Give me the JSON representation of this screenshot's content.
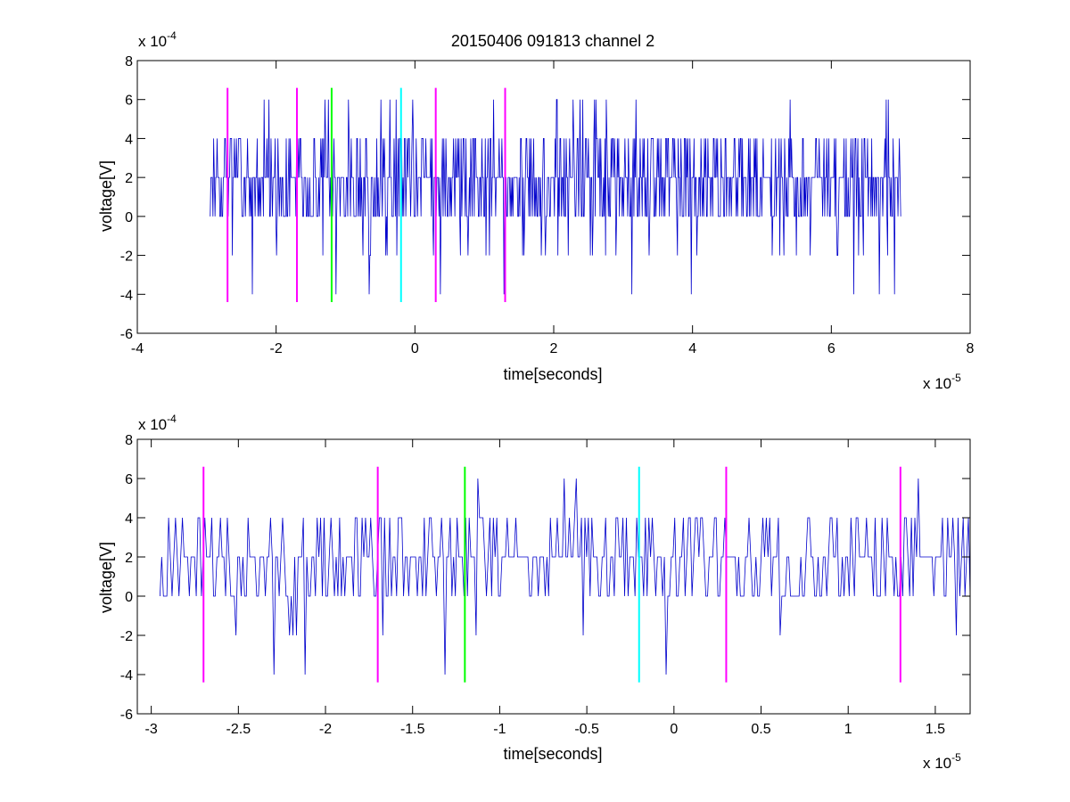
{
  "chart_data": [
    {
      "type": "line",
      "title": "20150406 091813 channel 2",
      "xlabel": "time[seconds]",
      "ylabel": "voltage[V]",
      "x_multiplier": "x 10",
      "x_exponent": "-5",
      "y_multiplier": "x 10",
      "y_exponent": "-4",
      "xlim": [
        -4e-05,
        8e-05
      ],
      "ylim": [
        -0.0006,
        0.0008
      ],
      "x_ticks": [
        -4e-05,
        -2e-05,
        0,
        2e-05,
        4e-05,
        6e-05,
        8e-05
      ],
      "x_tick_labels": [
        "-4",
        "-2",
        "0",
        "2",
        "4",
        "6",
        "8"
      ],
      "y_ticks": [
        -0.0006,
        -0.0004,
        -0.0002,
        0,
        0.0002,
        0.0004,
        0.0006,
        0.0008
      ],
      "y_tick_labels": [
        "-6",
        "-4",
        "-2",
        "0",
        "2",
        "4",
        "6",
        "8"
      ],
      "grid": false,
      "series": [
        {
          "color": "#0000cc",
          "x_start": -2.95e-05,
          "x_end": 7e-05,
          "quantization_step": 0.0002,
          "seed": 11,
          "samples": 1000,
          "values": []
        }
      ],
      "markers": [
        {
          "x": -2.7e-05,
          "color": "#ff00ff",
          "y_range": [
            -0.00044,
            0.00066
          ]
        },
        {
          "x": -1.7e-05,
          "color": "#ff00ff",
          "y_range": [
            -0.00044,
            0.00066
          ]
        },
        {
          "x": -1.2e-05,
          "color": "#00ff00",
          "y_range": [
            -0.00044,
            0.00066
          ]
        },
        {
          "x": -2e-06,
          "color": "#00ffff",
          "y_range": [
            -0.00044,
            0.00066
          ]
        },
        {
          "x": 3e-06,
          "color": "#ff00ff",
          "y_range": [
            -0.00044,
            0.00066
          ]
        },
        {
          "x": 1.3e-05,
          "color": "#ff00ff",
          "y_range": [
            -0.00044,
            0.00066
          ]
        }
      ]
    },
    {
      "type": "line",
      "title": "",
      "xlabel": "time[seconds]",
      "ylabel": "voltage[V]",
      "x_multiplier": "x 10",
      "x_exponent": "-5",
      "y_multiplier": "x 10",
      "y_exponent": "-4",
      "xlim": [
        -3.08e-05,
        1.7e-05
      ],
      "ylim": [
        -0.0006,
        0.0008
      ],
      "x_ticks": [
        -3e-05,
        -2.5e-05,
        -2e-05,
        -1.5e-05,
        -1e-05,
        -5e-06,
        0,
        5e-06,
        1e-05,
        1.5e-05
      ],
      "x_tick_labels": [
        "-3",
        "-2.5",
        "-2",
        "-1.5",
        "-1",
        "-0.5",
        "0",
        "0.5",
        "1",
        "1.5"
      ],
      "y_ticks": [
        -0.0006,
        -0.0004,
        -0.0002,
        0,
        0.0002,
        0.0004,
        0.0006,
        0.0008
      ],
      "y_tick_labels": [
        "-6",
        "-4",
        "-2",
        "0",
        "2",
        "4",
        "6",
        "8"
      ],
      "grid": false,
      "series": [
        {
          "color": "#0000cc",
          "x_start": -2.95e-05,
          "x_end": 1.7e-05,
          "quantization_step": 0.0002,
          "seed": 23,
          "samples": 470,
          "values": []
        }
      ],
      "markers": [
        {
          "x": -2.7e-05,
          "color": "#ff00ff",
          "y_range": [
            -0.00044,
            0.00066
          ]
        },
        {
          "x": -1.7e-05,
          "color": "#ff00ff",
          "y_range": [
            -0.00044,
            0.00066
          ]
        },
        {
          "x": -1.2e-05,
          "color": "#00ff00",
          "y_range": [
            -0.00044,
            0.00066
          ]
        },
        {
          "x": -2e-06,
          "color": "#00ffff",
          "y_range": [
            -0.00044,
            0.00066
          ]
        },
        {
          "x": 3e-06,
          "color": "#ff00ff",
          "y_range": [
            -0.00044,
            0.00066
          ]
        },
        {
          "x": 1.3e-05,
          "color": "#ff00ff",
          "y_range": [
            -0.00044,
            0.00066
          ]
        }
      ]
    }
  ]
}
